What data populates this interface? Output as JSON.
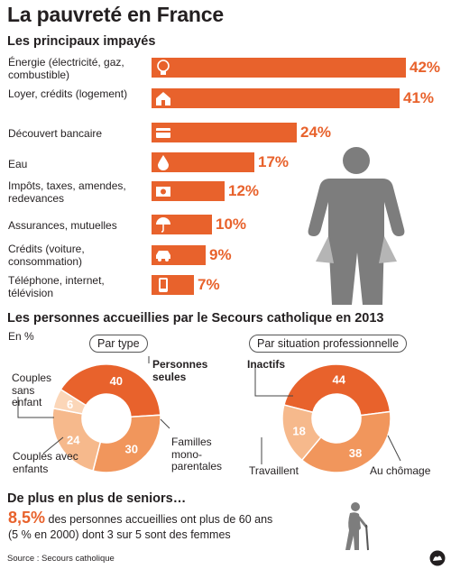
{
  "title": "La pauvreté en France",
  "impayes": {
    "heading": "Les principaux impayés",
    "items": [
      {
        "label": "Énergie (électricité, gaz, combustible)",
        "value": 42,
        "display": "42%",
        "icon": "bulb-icon"
      },
      {
        "label": "Loyer, crédits (logement)",
        "value": 41,
        "display": "41%",
        "icon": "house-icon"
      },
      {
        "label": "Découvert bancaire",
        "value": 24,
        "display": "24%",
        "icon": "bank-card-icon"
      },
      {
        "label": "Eau",
        "value": 17,
        "display": "17%",
        "icon": "water-drop-icon"
      },
      {
        "label": "Impôts, taxes, amendes, redevances",
        "value": 12,
        "display": "12%",
        "icon": "banknotes-icon"
      },
      {
        "label": "Assurances, mutuelles",
        "value": 10,
        "display": "10%",
        "icon": "umbrella-icon"
      },
      {
        "label": "Crédits (voiture, consommation)",
        "value": 9,
        "display": "9%",
        "icon": "car-icon"
      },
      {
        "label": "Téléphone, internet, télévision",
        "value": 7,
        "display": "7%",
        "icon": "phone-icon"
      }
    ]
  },
  "accueil": {
    "heading": "Les personnes accueillies par le Secours catholique en 2013",
    "unit": "En %",
    "par_type": {
      "pill": "Par type",
      "segments": [
        {
          "label": "Personnes seules",
          "value": 40,
          "color": "#e8622c"
        },
        {
          "label": "Familles mono-parentales",
          "value": 30,
          "color": "#f1965c"
        },
        {
          "label": "Couples avec enfants",
          "value": 24,
          "color": "#f6b98c"
        },
        {
          "label": "Couples sans enfant",
          "value": 6,
          "color": "#fbd6b8"
        }
      ]
    },
    "par_situation": {
      "pill": "Par situation professionnelle",
      "segments": [
        {
          "label": "Inactifs",
          "value": 44,
          "color": "#e8622c"
        },
        {
          "label": "Au chômage",
          "value": 38,
          "color": "#f1965c"
        },
        {
          "label": "Travaillent",
          "value": 18,
          "color": "#f6b98c"
        }
      ]
    }
  },
  "seniors": {
    "heading": "De plus en plus de seniors…",
    "pct": "8,5%",
    "text1": " des personnes accueillies ont plus de 60 ans",
    "text2": "(5 % en 2000) dont 3 sur 5 sont des femmes"
  },
  "source": "Source : Secours catholique",
  "chart_data": [
    {
      "type": "bar",
      "title": "Les principaux impayés",
      "categories": [
        "Énergie (électricité, gaz, combustible)",
        "Loyer, crédits (logement)",
        "Découvert bancaire",
        "Eau",
        "Impôts, taxes, amendes, redevances",
        "Assurances, mutuelles",
        "Crédits (voiture, consommation)",
        "Téléphone, internet, télévision"
      ],
      "values": [
        42,
        41,
        24,
        17,
        12,
        10,
        9,
        7
      ],
      "unit": "%"
    },
    {
      "type": "pie",
      "title": "Par type",
      "categories": [
        "Personnes seules",
        "Familles mono-parentales",
        "Couples avec enfants",
        "Couples sans enfant"
      ],
      "values": [
        40,
        30,
        24,
        6
      ],
      "unit": "En %"
    },
    {
      "type": "pie",
      "title": "Par situation professionnelle",
      "categories": [
        "Inactifs",
        "Au chômage",
        "Travaillent"
      ],
      "values": [
        44,
        38,
        18
      ],
      "unit": "En %"
    }
  ]
}
